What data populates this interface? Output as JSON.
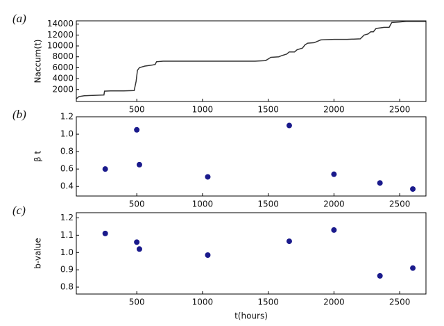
{
  "chart_data": [
    {
      "type": "line",
      "panel_label": "(a)",
      "ylabel": "Naccum(t)",
      "color": "#333333",
      "x": [
        40,
        60,
        100,
        150,
        200,
        250,
        255,
        300,
        400,
        480,
        495,
        505,
        520,
        560,
        620,
        640,
        650,
        700,
        1000,
        1400,
        1480,
        1500,
        1520,
        1580,
        1600,
        1640,
        1660,
        1700,
        1720,
        1760,
        1780,
        1800,
        1850,
        1900,
        2000,
        2100,
        2200,
        2230,
        2260,
        2280,
        2300,
        2320,
        2380,
        2420,
        2440,
        2500,
        2550,
        2700
      ],
      "y": [
        300,
        700,
        850,
        900,
        950,
        1000,
        1700,
        1750,
        1750,
        1800,
        3500,
        5500,
        6000,
        6300,
        6500,
        6600,
        7100,
        7200,
        7200,
        7200,
        7300,
        7600,
        7900,
        8000,
        8200,
        8500,
        8900,
        8900,
        9300,
        9600,
        10200,
        10500,
        10600,
        11100,
        11200,
        11200,
        11300,
        12000,
        12200,
        12600,
        12600,
        13200,
        13400,
        13400,
        14300,
        14400,
        14500,
        14500
      ],
      "xlim": [
        40,
        2700
      ],
      "xticks": [
        500,
        1000,
        1500,
        2000,
        2500
      ],
      "ylim": [
        -200,
        14600
      ],
      "yticks": [
        2000,
        4000,
        6000,
        8000,
        10000,
        12000,
        14000
      ]
    },
    {
      "type": "scatter",
      "panel_label": "(b)",
      "ylabel": "β t",
      "color": "#1a1a8c",
      "x": [
        260,
        500,
        520,
        1040,
        1660,
        2000,
        2350,
        2600
      ],
      "y": [
        0.6,
        1.05,
        0.65,
        0.51,
        1.1,
        0.54,
        0.44,
        0.37
      ],
      "xlim": [
        40,
        2700
      ],
      "xticks": [
        500,
        1000,
        1500,
        2000,
        2500
      ],
      "ylim": [
        0.29,
        1.2
      ],
      "yticks": [
        0.4,
        0.6,
        0.8,
        {
          "value": 1,
          "label": "1.0"
        },
        1.2
      ]
    },
    {
      "type": "scatter",
      "panel_label": "(c)",
      "ylabel": "b-value",
      "xlabel": "t(hours)",
      "color": "#1a1a8c",
      "x": [
        260,
        500,
        520,
        1040,
        1660,
        2000,
        2350,
        2600
      ],
      "y": [
        1.11,
        1.06,
        1.02,
        0.985,
        1.065,
        1.13,
        0.865,
        0.91
      ],
      "xlim": [
        40,
        2700
      ],
      "xticks": [
        500,
        1000,
        1500,
        2000,
        2500
      ],
      "ylim": [
        0.76,
        1.23
      ],
      "yticks": [
        0.8,
        0.9,
        {
          "value": 1,
          "label": "1.0"
        },
        1.1,
        1.2
      ]
    }
  ]
}
